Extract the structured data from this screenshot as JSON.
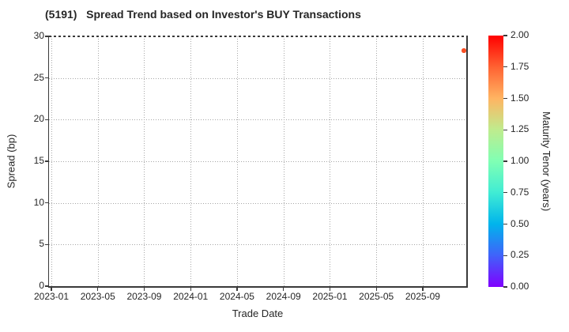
{
  "title": "(5191)   Spread Trend based on Investor's BUY Transactions",
  "colors": {
    "point": "#fa4e23",
    "spine": "#3a3a3a",
    "grid": "#a6a6a6",
    "text": "#262626",
    "background": "#ffffff"
  },
  "chart_data": {
    "type": "scatter",
    "title": "(5191)   Spread Trend based on Investor's BUY Transactions",
    "xlabel": "Trade Date",
    "ylabel": "Spread (bp)",
    "x_ticks": [
      "2023-01",
      "2023-05",
      "2023-09",
      "2024-01",
      "2024-05",
      "2024-09",
      "2025-01",
      "2025-05",
      "2025-09"
    ],
    "y_ticks": [
      0,
      5,
      10,
      15,
      20,
      25,
      30
    ],
    "ylim": [
      0,
      30
    ],
    "grid": true,
    "legend_position": "none",
    "points": [
      {
        "date": "2025-12",
        "spread_bp": 28.3,
        "maturity_tenor_years": 1.85,
        "x_frac": 0.994,
        "color": "#fa4e23"
      }
    ],
    "colorbar": {
      "label": "Maturity Tenor (years)",
      "tick_labels": [
        "2.00",
        "1.75",
        "1.50",
        "1.25",
        "1.00",
        "0.75",
        "0.50",
        "0.25",
        "0.00"
      ],
      "range": [
        0,
        2
      ],
      "colormap": "rainbow",
      "gradient_bottom_to_top": [
        "#8000ff",
        "#4062fa",
        "#00b4ec",
        "#40ecd4",
        "#80ffb4",
        "#bfec8e",
        "#ffb462",
        "#ff6232",
        "#ff0000"
      ]
    }
  }
}
